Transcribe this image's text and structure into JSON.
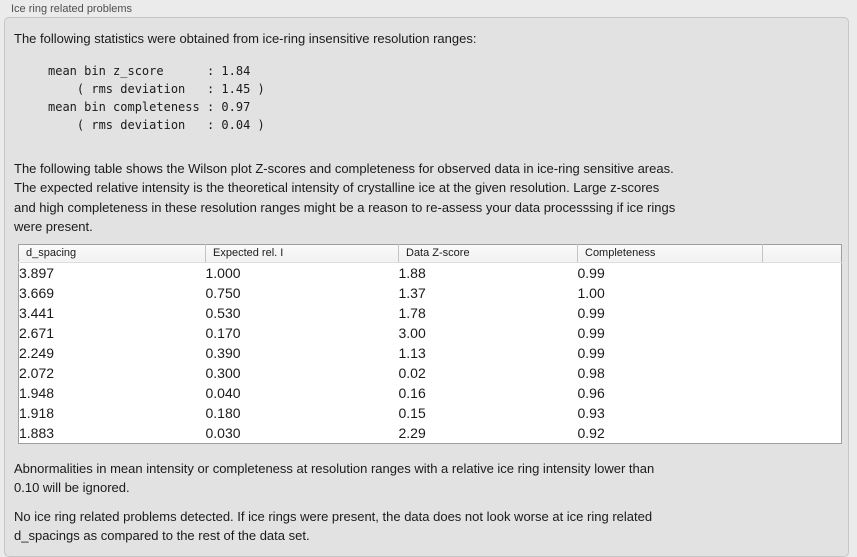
{
  "panel": {
    "title": "Ice ring related problems"
  },
  "intro_text": "The following statistics were obtained from ice-ring insensitive resolution ranges:",
  "stats_block": "mean bin z_score      : 1.84\n    ( rms deviation   : 1.45 )\nmean bin completeness : 0.97\n    ( rms deviation   : 0.04 )",
  "description_text": "The following table shows the Wilson plot Z-scores and completeness for observed data in ice-ring sensitive areas.\nThe expected relative intensity is the theoretical intensity of crystalline ice at the given resolution. Large z-scores\nand high completeness in these resolution ranges might be a reason to re-assess your data processsing if ice rings\nwere present.",
  "table": {
    "columns": [
      "d_spacing",
      "Expected rel. I",
      "Data Z-score",
      "Completeness"
    ],
    "rows": [
      [
        "3.897",
        "1.000",
        "1.88",
        "0.99"
      ],
      [
        "3.669",
        "0.750",
        "1.37",
        "1.00"
      ],
      [
        "3.441",
        "0.530",
        "1.78",
        "0.99"
      ],
      [
        "2.671",
        "0.170",
        "3.00",
        "0.99"
      ],
      [
        "2.249",
        "0.390",
        "1.13",
        "0.99"
      ],
      [
        "2.072",
        "0.300",
        "0.02",
        "0.98"
      ],
      [
        "1.948",
        "0.040",
        "0.16",
        "0.96"
      ],
      [
        "1.918",
        "0.180",
        "0.15",
        "0.93"
      ],
      [
        "1.883",
        "0.030",
        "2.29",
        "0.92"
      ]
    ]
  },
  "note_text": "Abnormalities in mean intensity or completeness at resolution ranges with a relative ice ring intensity lower than\n0.10 will be ignored.",
  "conclusion_text": "No ice ring related problems detected. If ice rings were present, the data does not look worse at ice ring related\nd_spacings as compared to the rest of the data set.",
  "colors": {
    "page_bg": "#ebebeb",
    "box_bg": "#e2e2e2",
    "box_border": "#c6c6c6",
    "table_border": "#9f9f9f",
    "header_bg": "#f6f6f6",
    "text": "#1a1a1a",
    "title_text": "#4f4f4f"
  }
}
